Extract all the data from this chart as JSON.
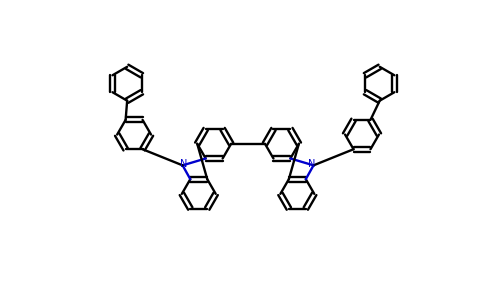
{
  "bg_color": "#ffffff",
  "bond_color": "#000000",
  "N_color": "#0000cd",
  "lw": 1.7,
  "dbo": 3.2,
  "figsize": [
    4.84,
    3.0
  ],
  "dpi": 100,
  "R": 22
}
